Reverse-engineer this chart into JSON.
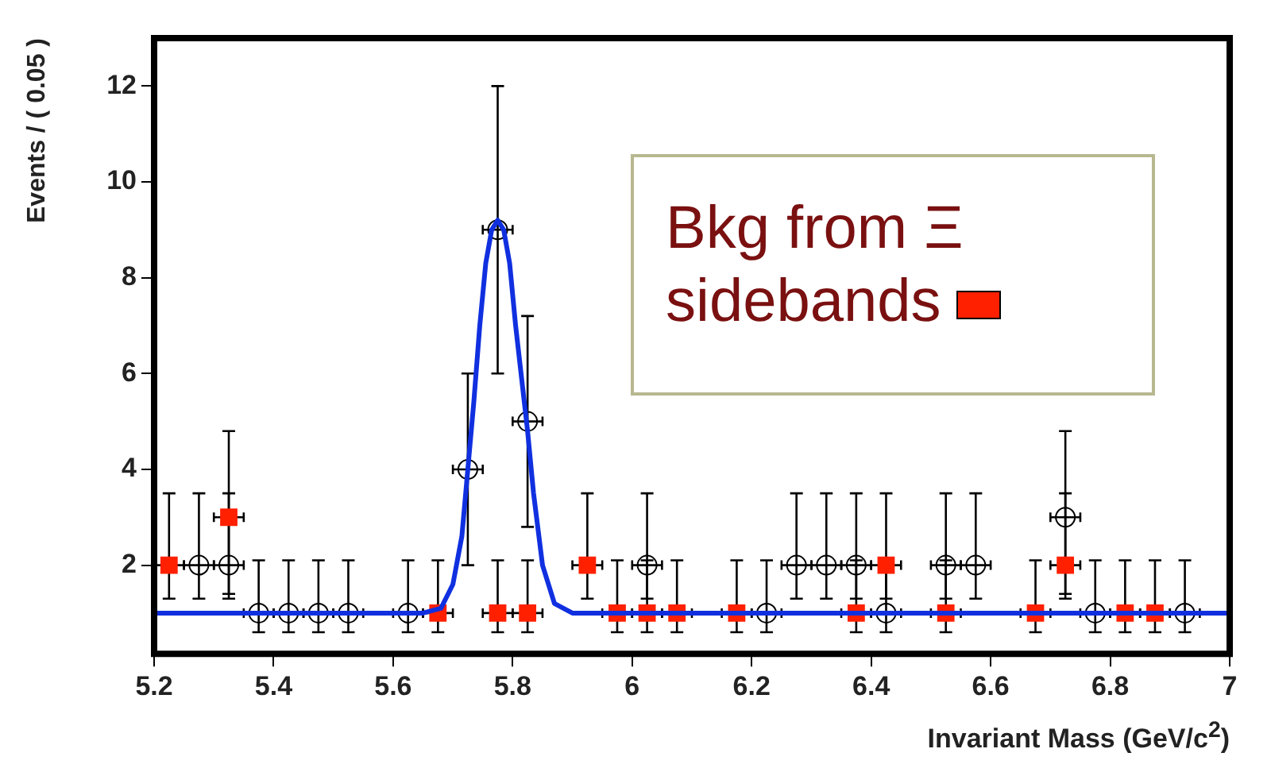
{
  "chart_data": {
    "type": "scatter",
    "xlabel": "Invariant Mass (GeV/c$^{2}$)",
    "ylabel": "Events / ( 0.05 )",
    "xlim": [
      5.2,
      7
    ],
    "xticks": [
      5.2,
      5.4,
      5.6,
      5.8,
      6,
      6.2,
      6.4,
      6.6,
      6.8,
      7
    ],
    "ylim": [
      0.15,
      13
    ],
    "yticks": [
      2,
      4,
      6,
      8,
      10,
      12
    ],
    "grid": false,
    "legend": "top right",
    "series": [
      {
        "type": "scatter",
        "marker": "circle",
        "color": "#000000",
        "x": [
          5.275,
          5.325,
          5.375,
          5.425,
          5.475,
          5.525,
          5.625,
          5.725,
          5.775,
          5.825,
          6.025,
          6.225,
          6.275,
          6.325,
          6.375,
          6.425,
          6.525,
          6.575,
          6.725,
          6.775,
          6.925
        ],
        "values": [
          2,
          2,
          1,
          1,
          1,
          1,
          1,
          4,
          9,
          5,
          2,
          1,
          2,
          2,
          2,
          1,
          2,
          2,
          3,
          1,
          1
        ],
        "errors": [
          [
            1.3,
            3.5
          ],
          [
            1.3,
            3.5
          ],
          [
            0.6,
            2.1
          ],
          [
            0.6,
            2.1
          ],
          [
            0.6,
            2.1
          ],
          [
            0.6,
            2.1
          ],
          [
            0.6,
            2.1
          ],
          [
            2.0,
            6.0
          ],
          [
            6.0,
            12.0
          ],
          [
            2.8,
            7.2
          ],
          [
            1.3,
            3.5
          ],
          [
            0.6,
            2.1
          ],
          [
            1.3,
            3.5
          ],
          [
            1.3,
            3.5
          ],
          [
            1.3,
            3.5
          ],
          [
            0.6,
            2.1
          ],
          [
            1.3,
            3.5
          ],
          [
            1.3,
            3.5
          ],
          [
            1.4,
            4.8
          ],
          [
            0.6,
            2.1
          ],
          [
            0.6,
            2.1
          ]
        ],
        "xerrors": [
          0.025,
          0.025,
          0.025,
          0.025,
          0.025,
          0.025,
          0.025,
          0.025,
          0.025,
          0.025,
          0.025,
          0.025,
          0.025,
          0.025,
          0.025,
          0.025,
          0.025,
          0.025,
          0.025,
          0.025,
          0.025
        ]
      },
      {
        "type": "scatter",
        "name": "Bkg from Ξ sidebands",
        "marker": "square",
        "color": "#ff2000",
        "x": [
          5.225,
          5.325,
          5.675,
          5.775,
          5.825,
          5.925,
          5.975,
          6.025,
          6.075,
          6.175,
          6.375,
          6.425,
          6.525,
          6.675,
          6.725,
          6.825,
          6.875
        ],
        "values": [
          2,
          3,
          1,
          1,
          1,
          2,
          1,
          1,
          1,
          1,
          1,
          2,
          1,
          1,
          2,
          1,
          1
        ],
        "errors": [
          [
            1.3,
            3.5
          ],
          [
            1.4,
            4.8
          ],
          [
            0.6,
            2.1
          ],
          [
            0.6,
            2.1
          ],
          [
            0.6,
            2.1
          ],
          [
            1.3,
            3.5
          ],
          [
            0.6,
            2.1
          ],
          [
            0.6,
            2.1
          ],
          [
            0.6,
            2.1
          ],
          [
            0.6,
            2.1
          ],
          [
            0.6,
            2.1
          ],
          [
            1.3,
            3.5
          ],
          [
            0.6,
            2.1
          ],
          [
            0.6,
            2.1
          ],
          [
            1.3,
            3.5
          ],
          [
            0.6,
            2.1
          ],
          [
            0.6,
            2.1
          ]
        ],
        "xerrors": [
          0.025,
          0.025,
          0.025,
          0.025,
          0.025,
          0.025,
          0.025,
          0.025,
          0.025,
          0.025,
          0.025,
          0.025,
          0.025,
          0.025,
          0.025,
          0.025,
          0.025
        ]
      },
      {
        "type": "line",
        "marker": "none",
        "line_style": "solid",
        "color": "#1030e0",
        "x": [
          5.2,
          5.65,
          5.68,
          5.7,
          5.715,
          5.725,
          5.735,
          5.745,
          5.755,
          5.765,
          5.775,
          5.785,
          5.795,
          5.805,
          5.815,
          5.825,
          5.835,
          5.85,
          5.87,
          5.9,
          7
        ],
        "values": [
          1,
          1,
          1.1,
          1.6,
          2.6,
          4.0,
          5.4,
          7.0,
          8.3,
          9.0,
          9.2,
          9.0,
          8.3,
          7.0,
          5.9,
          4.8,
          3.5,
          2.0,
          1.2,
          1.0,
          1
        ]
      }
    ]
  }
}
